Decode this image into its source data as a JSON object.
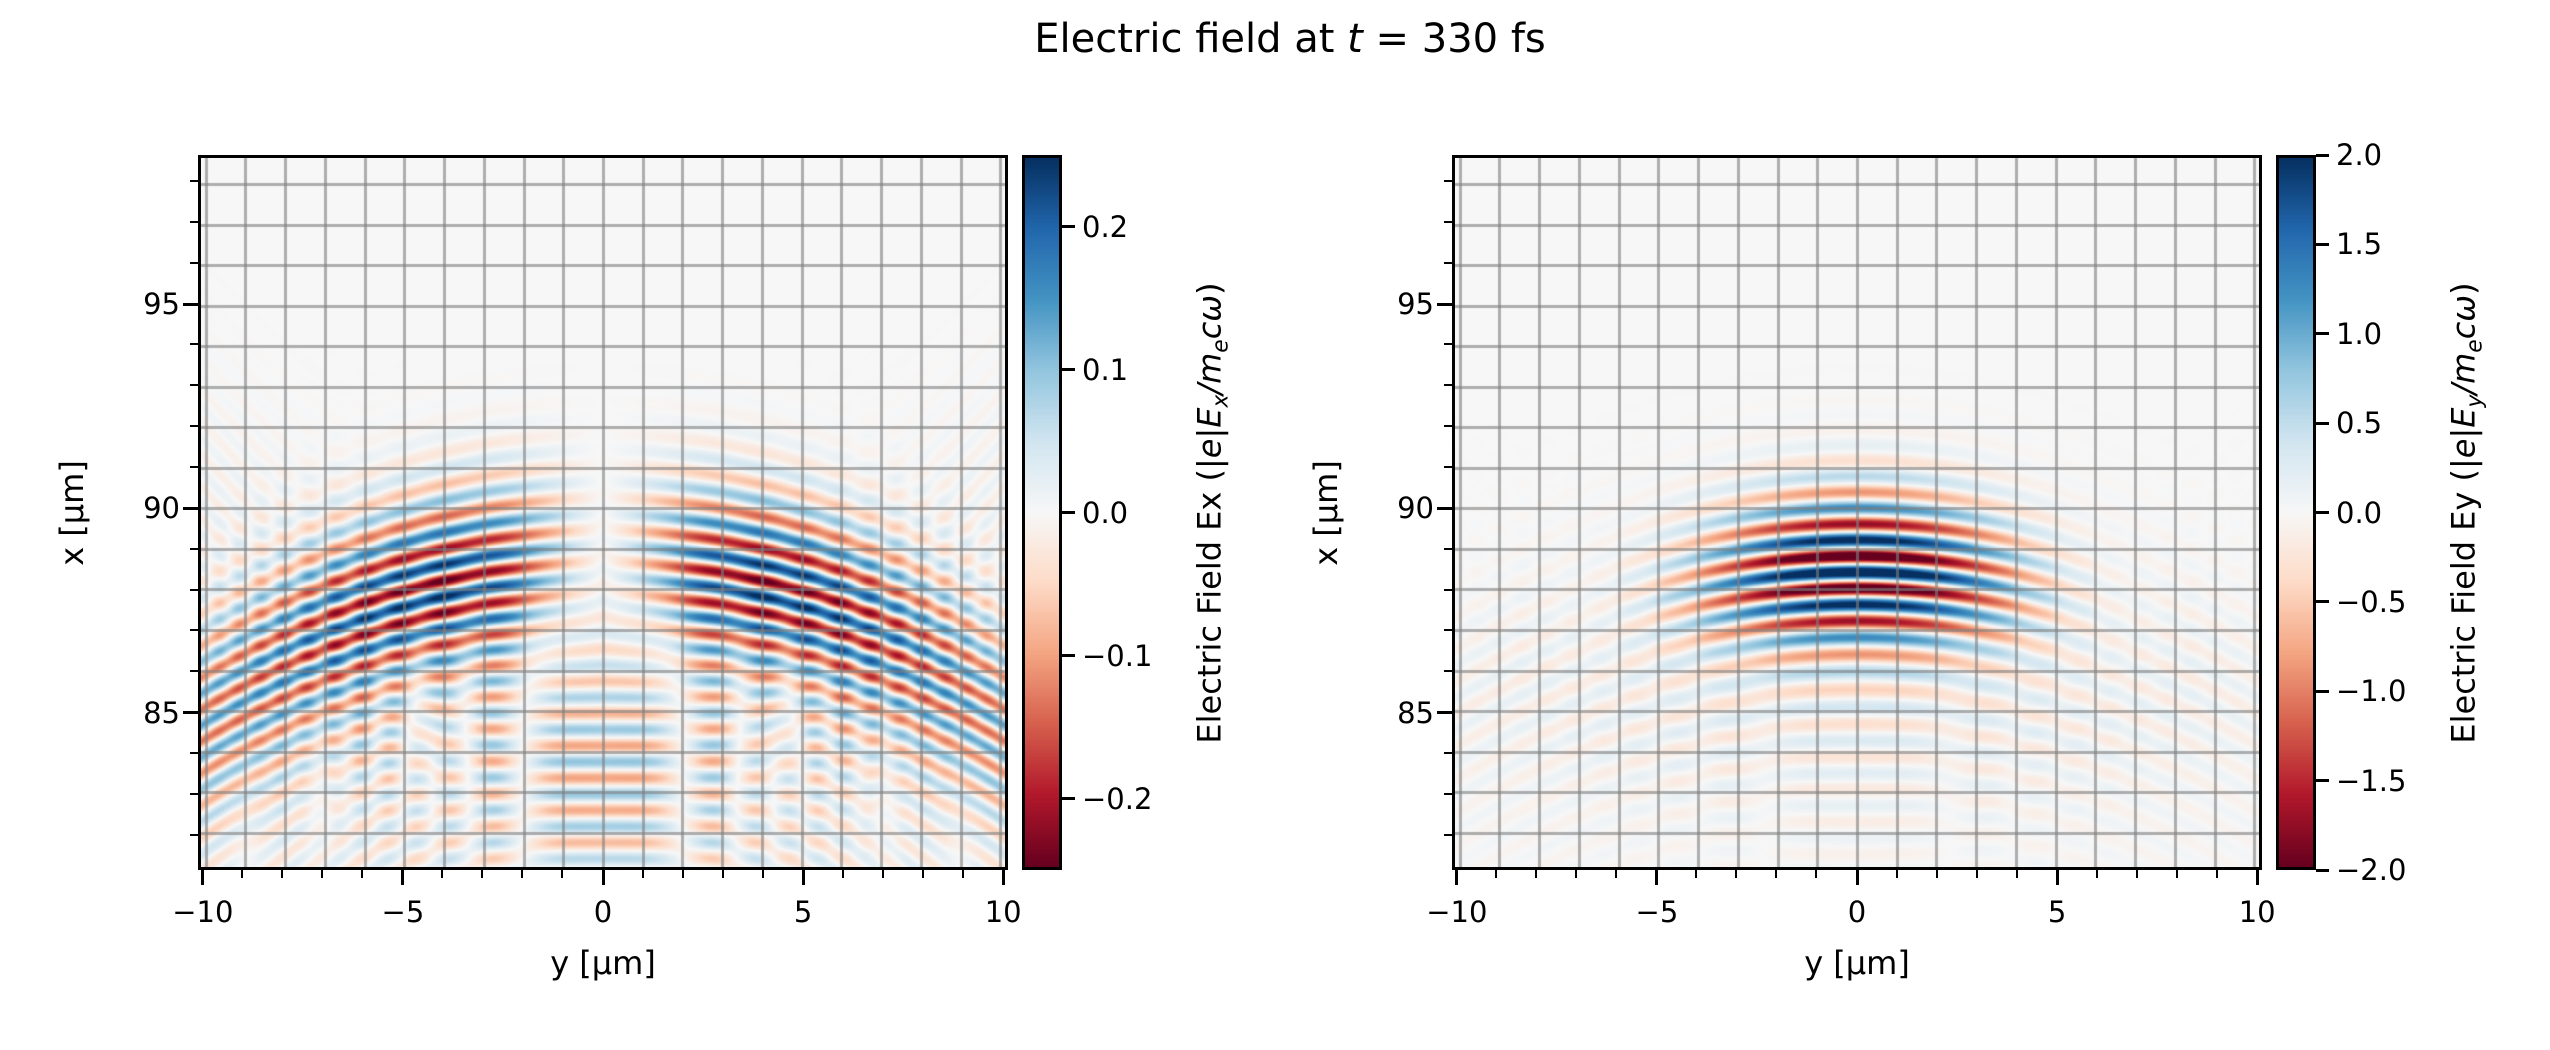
{
  "title": {
    "text": "Electric field at t = 330 fs",
    "segments": [
      {
        "t": "Electric field at "
      },
      {
        "t": "t",
        "i": 1
      },
      {
        "t": " = 330 fs"
      }
    ]
  },
  "colormap": {
    "name": "RdBu",
    "stops": [
      [
        0.0,
        "#67001f"
      ],
      [
        0.1,
        "#b2182b"
      ],
      [
        0.2,
        "#d6604d"
      ],
      [
        0.3,
        "#f4a582"
      ],
      [
        0.4,
        "#fddbc7"
      ],
      [
        0.5,
        "#f7f7f7"
      ],
      [
        0.6,
        "#d1e5f0"
      ],
      [
        0.7,
        "#92c5de"
      ],
      [
        0.8,
        "#4393c3"
      ],
      [
        0.9,
        "#2166ac"
      ],
      [
        1.0,
        "#053061"
      ]
    ]
  },
  "style": {
    "grid_color": "rgba(128,128,128,0.62)",
    "spine_color": "#000000",
    "background": "#ffffff"
  },
  "chart_data": [
    {
      "id": "ex",
      "type": "heatmap",
      "x_axis": {
        "label": "y [μm]",
        "range": [
          -10.12,
          10.12
        ],
        "major": [
          {
            "v": -10,
            "t": "−10"
          },
          {
            "v": -5,
            "t": "−5"
          },
          {
            "v": 0,
            "t": "0"
          },
          {
            "v": 5,
            "t": "5"
          },
          {
            "v": 10,
            "t": "10"
          }
        ],
        "minor_step": 1
      },
      "y_axis": {
        "label": "x [μm]",
        "range": [
          81.15,
          98.65
        ],
        "major": [
          {
            "v": 95,
            "t": "95"
          },
          {
            "v": 90,
            "t": "90"
          },
          {
            "v": 85,
            "t": "85"
          }
        ],
        "minor_step": 1
      },
      "grid_step": 1,
      "colorbar": {
        "range": [
          -0.25,
          0.25
        ],
        "ticks": [
          {
            "v": 0.2,
            "t": "0.2"
          },
          {
            "v": 0.1,
            "t": "0.1"
          },
          {
            "v": 0.0,
            "t": "0.0"
          },
          {
            "v": -0.1,
            "t": "−0.1"
          },
          {
            "v": -0.2,
            "t": "−0.2"
          }
        ],
        "label_text": "Electric Field Ex (|e|Ex/mecω)",
        "label_segments": [
          {
            "t": "Electric Field Ex ("
          },
          {
            "t": "|e|E",
            "i": 1
          },
          {
            "t": "x",
            "i": 1,
            "s": 1
          },
          {
            "t": "/",
            "i": 1
          },
          {
            "t": "m",
            "i": 1
          },
          {
            "t": "e",
            "i": 1,
            "s": 1
          },
          {
            "t": "cω",
            "i": 1
          },
          {
            "t": ")"
          }
        ]
      },
      "field": {
        "description": "Transverse-node laser pulse field Ex: weak arc-shaped fringes, antinode lobes either side of y=0, crosshatch tail below x≈85",
        "wavelength_um": 0.8,
        "components": [
          {
            "amp": 0.27,
            "xc": 88.5,
            "sx": 1.6,
            "sy": 4.2,
            "curv": 0.028,
            "phase": 2.0,
            "ynode": true
          },
          {
            "amp": 0.1,
            "xc": 87.2,
            "sx": 1.9,
            "sy": 9.0,
            "curv": 0.03,
            "phase": 2.0,
            "ynode": true
          },
          {
            "amp": 0.05,
            "xc": 83.8,
            "sx": 2.6,
            "sy": 7.0,
            "curv": -0.055,
            "phase": 0.6,
            "ynode": false
          },
          {
            "amp": 0.05,
            "xc": 83.3,
            "sx": 2.6,
            "sy": 7.0,
            "curv": 0.055,
            "phase": 2.6,
            "ynode": false
          }
        ]
      }
    },
    {
      "id": "ey",
      "type": "heatmap",
      "x_axis": {
        "label": "y [μm]",
        "range": [
          -10.12,
          10.12
        ],
        "major": [
          {
            "v": -10,
            "t": "−10"
          },
          {
            "v": -5,
            "t": "−5"
          },
          {
            "v": 0,
            "t": "0"
          },
          {
            "v": 5,
            "t": "5"
          },
          {
            "v": 10,
            "t": "10"
          }
        ],
        "minor_step": 1
      },
      "y_axis": {
        "label": "x [μm]",
        "range": [
          81.15,
          98.65
        ],
        "major": [
          {
            "v": 95,
            "t": "95"
          },
          {
            "v": 90,
            "t": "90"
          },
          {
            "v": 85,
            "t": "85"
          }
        ],
        "minor_step": 1
      },
      "grid_step": 1,
      "colorbar": {
        "range": [
          -2.0,
          2.0
        ],
        "ticks": [
          {
            "v": 2.0,
            "t": "2.0"
          },
          {
            "v": 1.5,
            "t": "1.5"
          },
          {
            "v": 1.0,
            "t": "1.0"
          },
          {
            "v": 0.5,
            "t": "0.5"
          },
          {
            "v": 0.0,
            "t": "0.0"
          },
          {
            "v": -0.5,
            "t": "−0.5"
          },
          {
            "v": -1.0,
            "t": "−1.0"
          },
          {
            "v": -1.5,
            "t": "−1.5"
          },
          {
            "v": -2.0,
            "t": "−2.0"
          }
        ],
        "label_text": "Electric Field Ey (|e|Ey/mecω)",
        "label_segments": [
          {
            "t": "Electric Field Ey ("
          },
          {
            "t": "|e|E",
            "i": 1
          },
          {
            "t": "y",
            "i": 1,
            "s": 1
          },
          {
            "t": "/",
            "i": 1
          },
          {
            "t": "m",
            "i": 1
          },
          {
            "t": "e",
            "i": 1,
            "s": 1
          },
          {
            "t": "cω",
            "i": 1
          },
          {
            "t": ")"
          }
        ]
      },
      "field": {
        "description": "Main laser pulse Ey: strong saturated horizontal fringes centered near (y=0, x≈88.4), upward-bowed wavefronts, λ=0.8 μm, faint tail below",
        "wavelength_um": 0.8,
        "components": [
          {
            "amp": 2.7,
            "xc": 88.45,
            "sx": 1.35,
            "sy": 3.0,
            "curv": 0.026,
            "phase": 0.0,
            "ynode": false
          },
          {
            "amp": 0.45,
            "xc": 88.2,
            "sx": 1.8,
            "sy": 6.5,
            "curv": 0.028,
            "phase": 0.0,
            "ynode": false
          },
          {
            "amp": 0.2,
            "xc": 85.2,
            "sx": 2.2,
            "sy": 5.5,
            "curv": 0.03,
            "phase": 1.0,
            "ynode": false
          },
          {
            "amp": 0.07,
            "xc": 83.5,
            "sx": 2.4,
            "sy": 6.0,
            "curv": -0.05,
            "phase": 0.5,
            "ynode": false
          }
        ]
      }
    }
  ]
}
